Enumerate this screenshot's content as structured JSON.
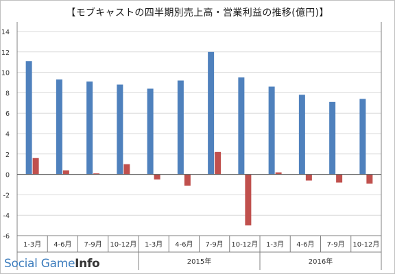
{
  "title": "【モブキャストの四半期別売上高・営業利益の推移(億円)】",
  "watermark": {
    "social": "Social Game",
    "info": "Info"
  },
  "colors": {
    "sales": "#4f81bd",
    "profit": "#c0504d",
    "grid": "#d9d9d9",
    "axis": "#808080"
  },
  "chart_data": {
    "type": "bar",
    "title": "【モブキャストの四半期別売上高・営業利益の推移(億円)】",
    "ylim": [
      -6,
      14
    ],
    "yticks": [
      -6,
      -4,
      -2,
      0,
      2,
      4,
      6,
      8,
      10,
      12,
      14
    ],
    "grid": true,
    "categories": [
      "1-3月",
      "4-6月",
      "7-9月",
      "10-12月",
      "1-3月",
      "4-6月",
      "7-9月",
      "10-12月",
      "1-3月",
      "4-6月",
      "7-9月",
      "10-12月"
    ],
    "groups": [
      {
        "label": "",
        "count": 4
      },
      {
        "label": "2015年",
        "count": 4
      },
      {
        "label": "2016年",
        "count": 4
      }
    ],
    "series": [
      {
        "values": [
          11.1,
          9.3,
          9.1,
          8.8,
          8.4,
          9.2,
          12.0,
          9.5,
          8.6,
          7.8,
          7.1,
          7.4
        ]
      },
      {
        "values": [
          1.6,
          0.4,
          0.1,
          1.0,
          -0.5,
          -1.1,
          2.2,
          -5.0,
          0.2,
          -0.6,
          -0.8,
          -0.9
        ]
      }
    ]
  }
}
